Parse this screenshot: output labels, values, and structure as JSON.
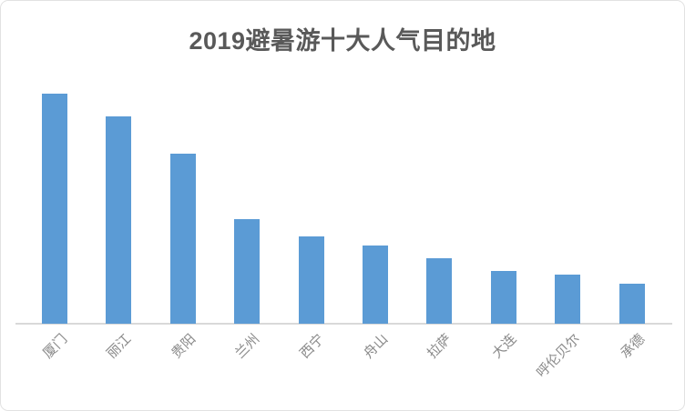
{
  "chart": {
    "title": "2019避暑游十大人气目的地"
  },
  "chart_data": {
    "type": "bar",
    "title": "2019避暑游十大人气目的地",
    "categories": [
      "厦门",
      "丽江",
      "贵阳",
      "兰州",
      "西宁",
      "舟山",
      "拉萨",
      "大连",
      "呼伦贝尔",
      "承德"
    ],
    "values": [
      100,
      90,
      74,
      45.5,
      38,
      34,
      28.5,
      23,
      21.5,
      17.5
    ],
    "value_note": "no y-axis or data labels shown; values estimated from bar heights normalized to tallest bar = 100",
    "xlabel": "",
    "ylabel": "",
    "ylim": [
      0,
      100
    ],
    "grid": false,
    "legend": false,
    "x_tick_rotation_deg": -45,
    "colors": {
      "bar": "#5b9bd5",
      "title": "#595959",
      "axis_line": "#d9d9d9",
      "tick_label": "#8a8a8a"
    }
  }
}
